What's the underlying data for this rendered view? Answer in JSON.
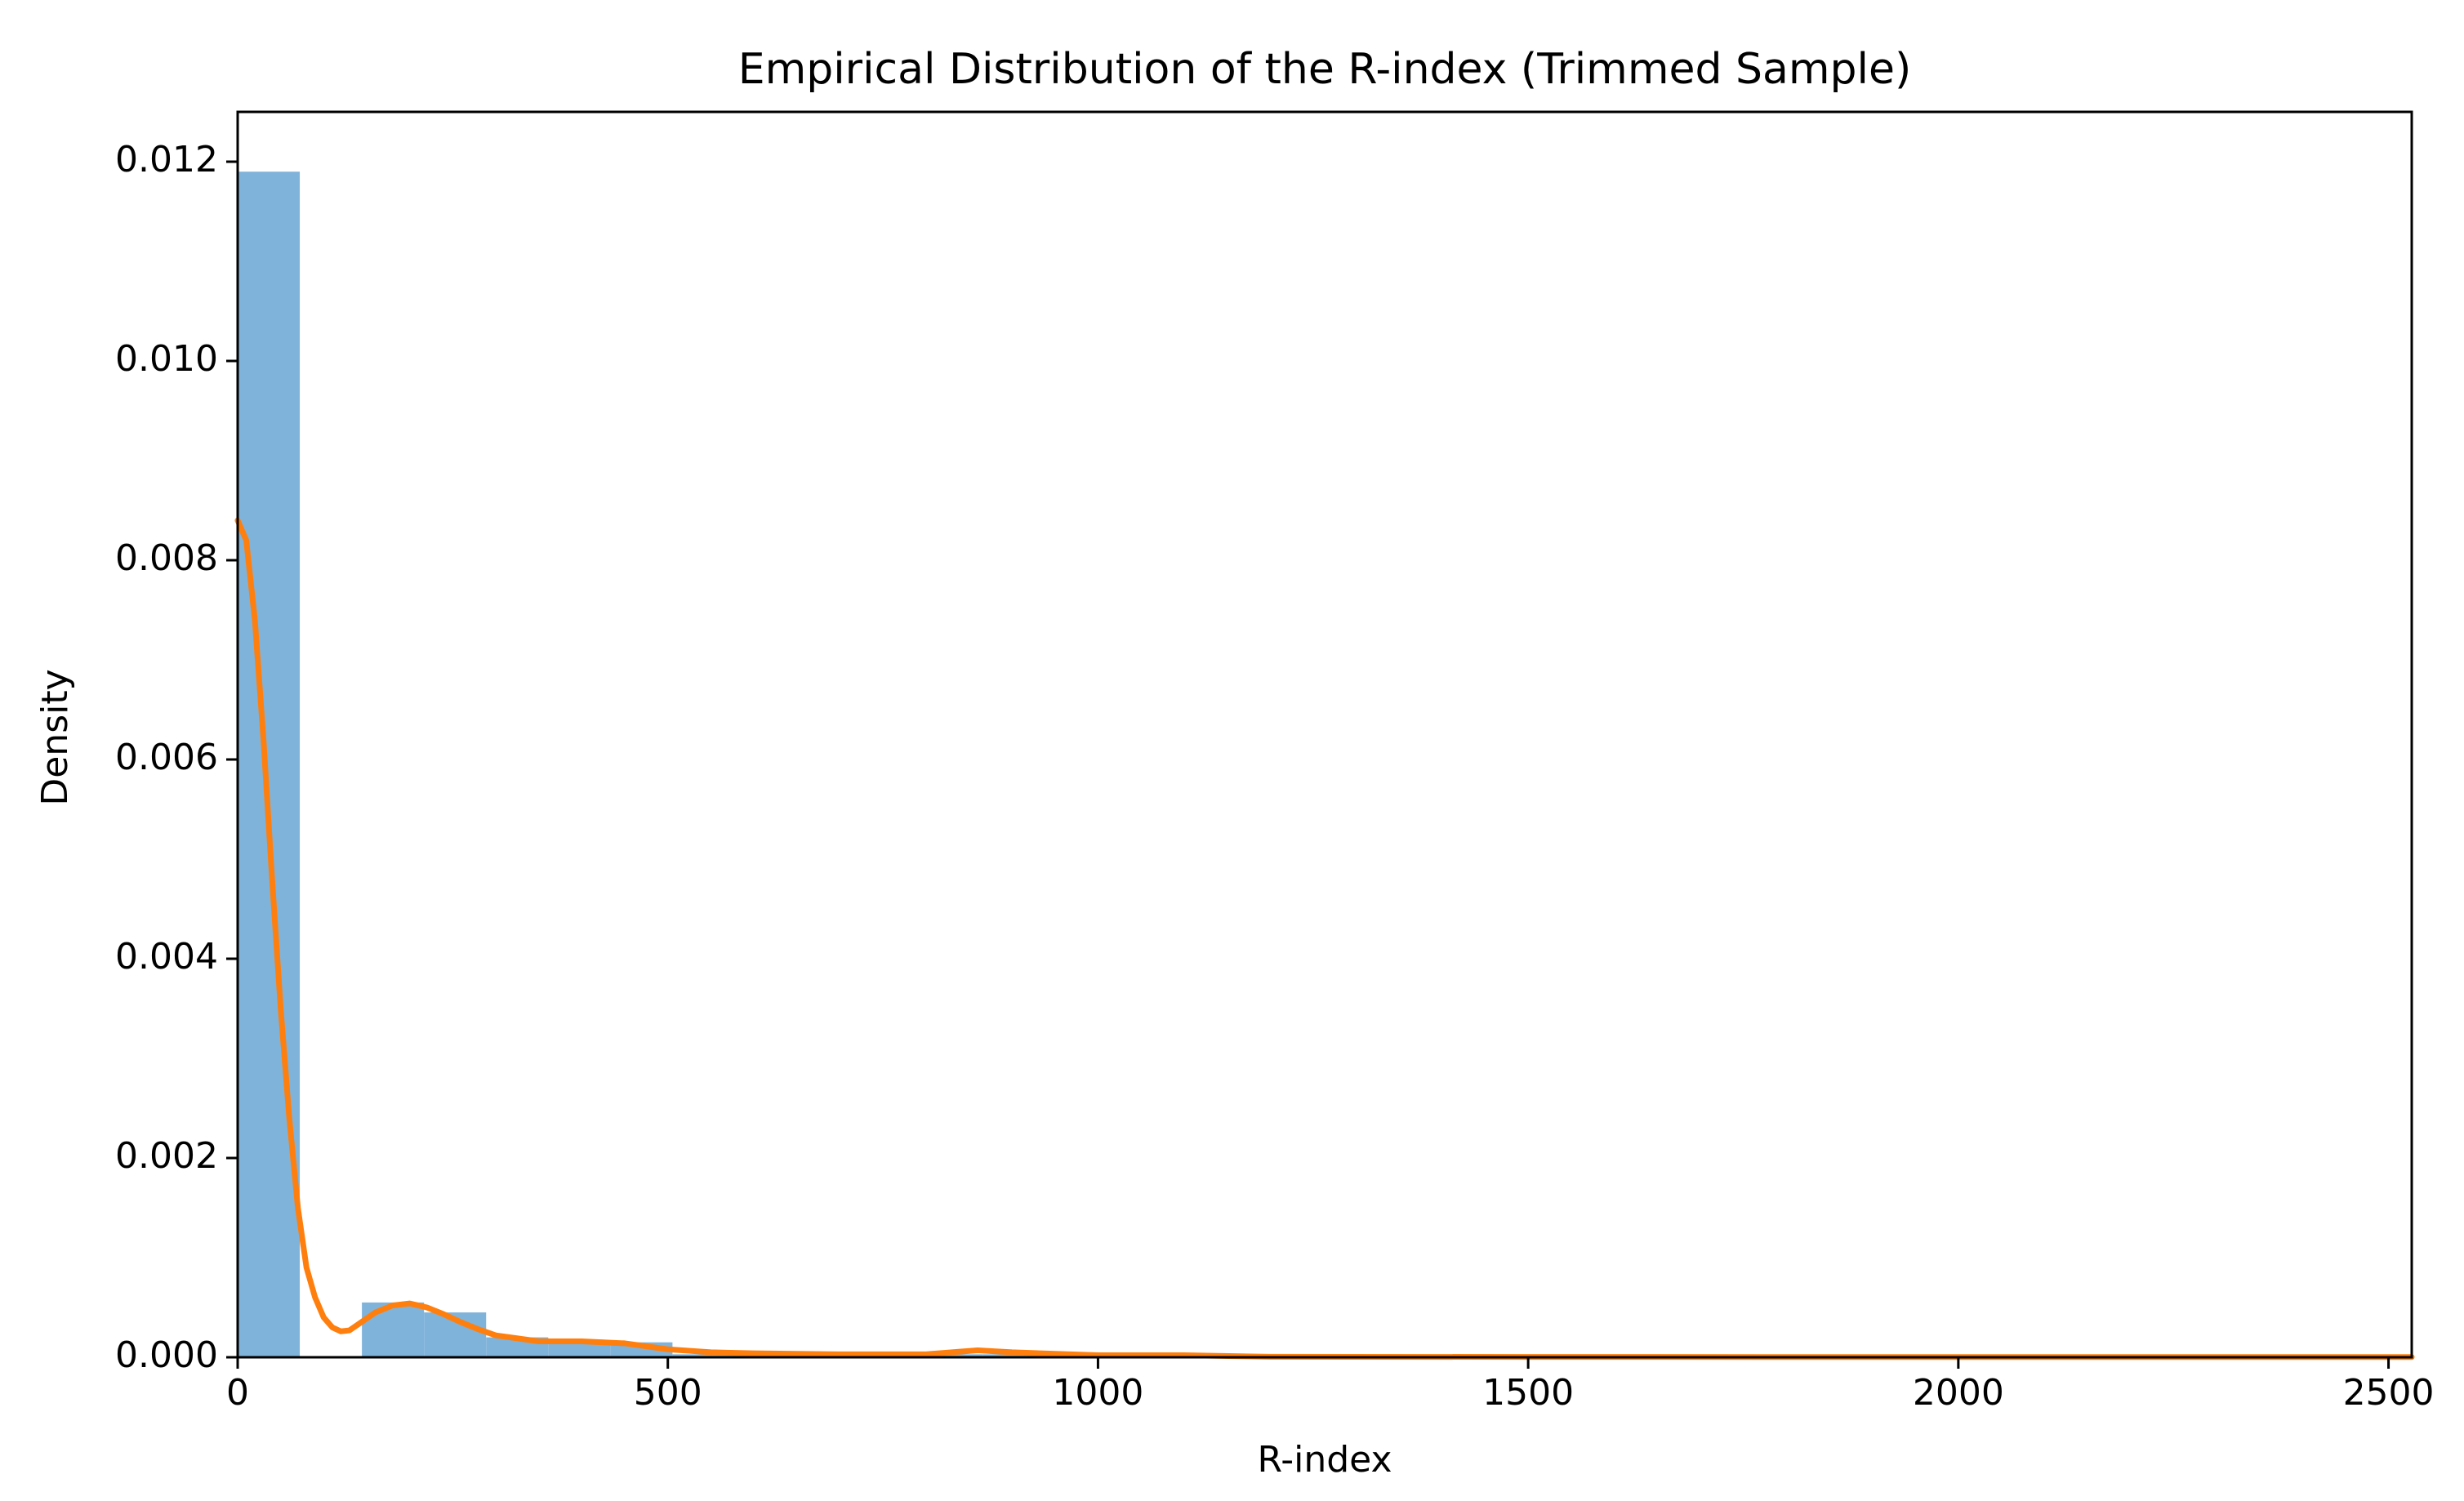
{
  "chart_data": {
    "type": "histogram",
    "title": "Empirical Distribution of the R-index (Trimmed Sample)",
    "xlabel": "R-index",
    "ylabel": "Density",
    "bins": [
      0,
      72.2,
      144.4,
      216.6,
      288.8,
      361,
      433.2,
      505.4,
      577.6,
      649.8,
      722,
      794.2,
      866.4,
      938.6,
      1010.8,
      1083,
      1155.2,
      1227.4,
      1299.6,
      1371.8,
      1444,
      1516.2,
      1588.4,
      1660.6,
      1732.8,
      1805,
      1877.2,
      1949.4,
      2021.6,
      2093.8,
      2166,
      2238.2,
      2310.4,
      2382.6,
      2454.8,
      2527
    ],
    "values": [
      0.0119,
      0,
      0.00055,
      0.00045,
      0.0002,
      0.00015,
      0.00015,
      3e-05,
      2e-05,
      2e-05,
      1e-05,
      3e-05,
      3e-05,
      1e-05,
      1e-05,
      1e-05,
      1e-05,
      0,
      0,
      0,
      0,
      0,
      0,
      0,
      0,
      0,
      0,
      0,
      0,
      0,
      0,
      0,
      0,
      0,
      5e-06
    ],
    "color": "#80b3d9",
    "line": {
      "type": "line",
      "color": "#ff7f0e",
      "x": [
        0,
        10,
        20,
        30,
        40,
        50,
        60,
        70,
        80,
        90,
        100,
        110,
        120,
        130,
        140,
        160,
        180,
        200,
        220,
        240,
        260,
        280,
        300,
        350,
        400,
        450,
        500,
        550,
        600,
        700,
        800,
        860,
        900,
        1000,
        1100,
        1200,
        1500,
        2000,
        2527
      ],
      "values": [
        0.0084,
        0.0082,
        0.0074,
        0.0062,
        0.0048,
        0.0035,
        0.0024,
        0.0015,
        0.0009,
        0.0006,
        0.0004,
        0.0003,
        0.00026,
        0.00027,
        0.00033,
        0.00045,
        0.00052,
        0.00054,
        0.0005,
        0.00043,
        0.00035,
        0.00028,
        0.00022,
        0.00016,
        0.00016,
        0.00014,
        8e-05,
        5e-05,
        4e-05,
        3e-05,
        3e-05,
        7e-05,
        5e-05,
        2e-05,
        2e-05,
        5e-06,
        3e-06,
        2e-06,
        2e-06
      ]
    },
    "xlim": [
      0,
      2527
    ],
    "ylim": [
      0,
      0.0125
    ],
    "xticks": [
      0,
      500,
      1000,
      1500,
      2000,
      2500
    ],
    "yticks": [
      {
        "value": 0,
        "label": "0.000"
      },
      {
        "value": 0.002,
        "label": "0.002"
      },
      {
        "value": 0.004,
        "label": "0.004"
      },
      {
        "value": 0.006,
        "label": "0.006"
      },
      {
        "value": 0.008,
        "label": "0.008"
      },
      {
        "value": 0.01,
        "label": "0.010"
      },
      {
        "value": 0.012,
        "label": "0.012"
      }
    ]
  }
}
